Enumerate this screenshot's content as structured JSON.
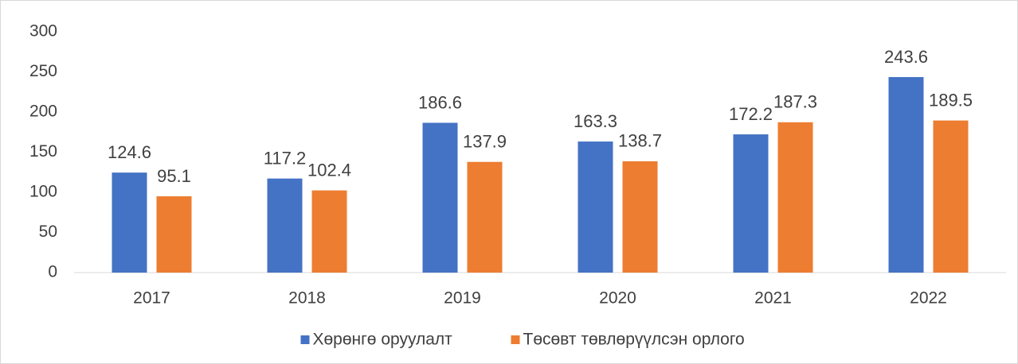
{
  "chart_data": {
    "type": "bar",
    "categories": [
      "2017",
      "2018",
      "2019",
      "2020",
      "2021",
      "2022"
    ],
    "series": [
      {
        "name": "Хөрөнгө оруулалт",
        "color": "#4472c4",
        "values": [
          124.6,
          117.2,
          186.6,
          163.3,
          172.2,
          243.6
        ]
      },
      {
        "name": "Төсөвт төвлөрүүлсэн орлого",
        "color": "#ed7d31",
        "values": [
          95.1,
          102.4,
          137.9,
          138.7,
          187.3,
          189.5
        ]
      }
    ],
    "ylim": [
      0,
      300
    ],
    "yticks": [
      0,
      50,
      100,
      150,
      200,
      250,
      300
    ],
    "grid": false,
    "legend": "bottom"
  }
}
